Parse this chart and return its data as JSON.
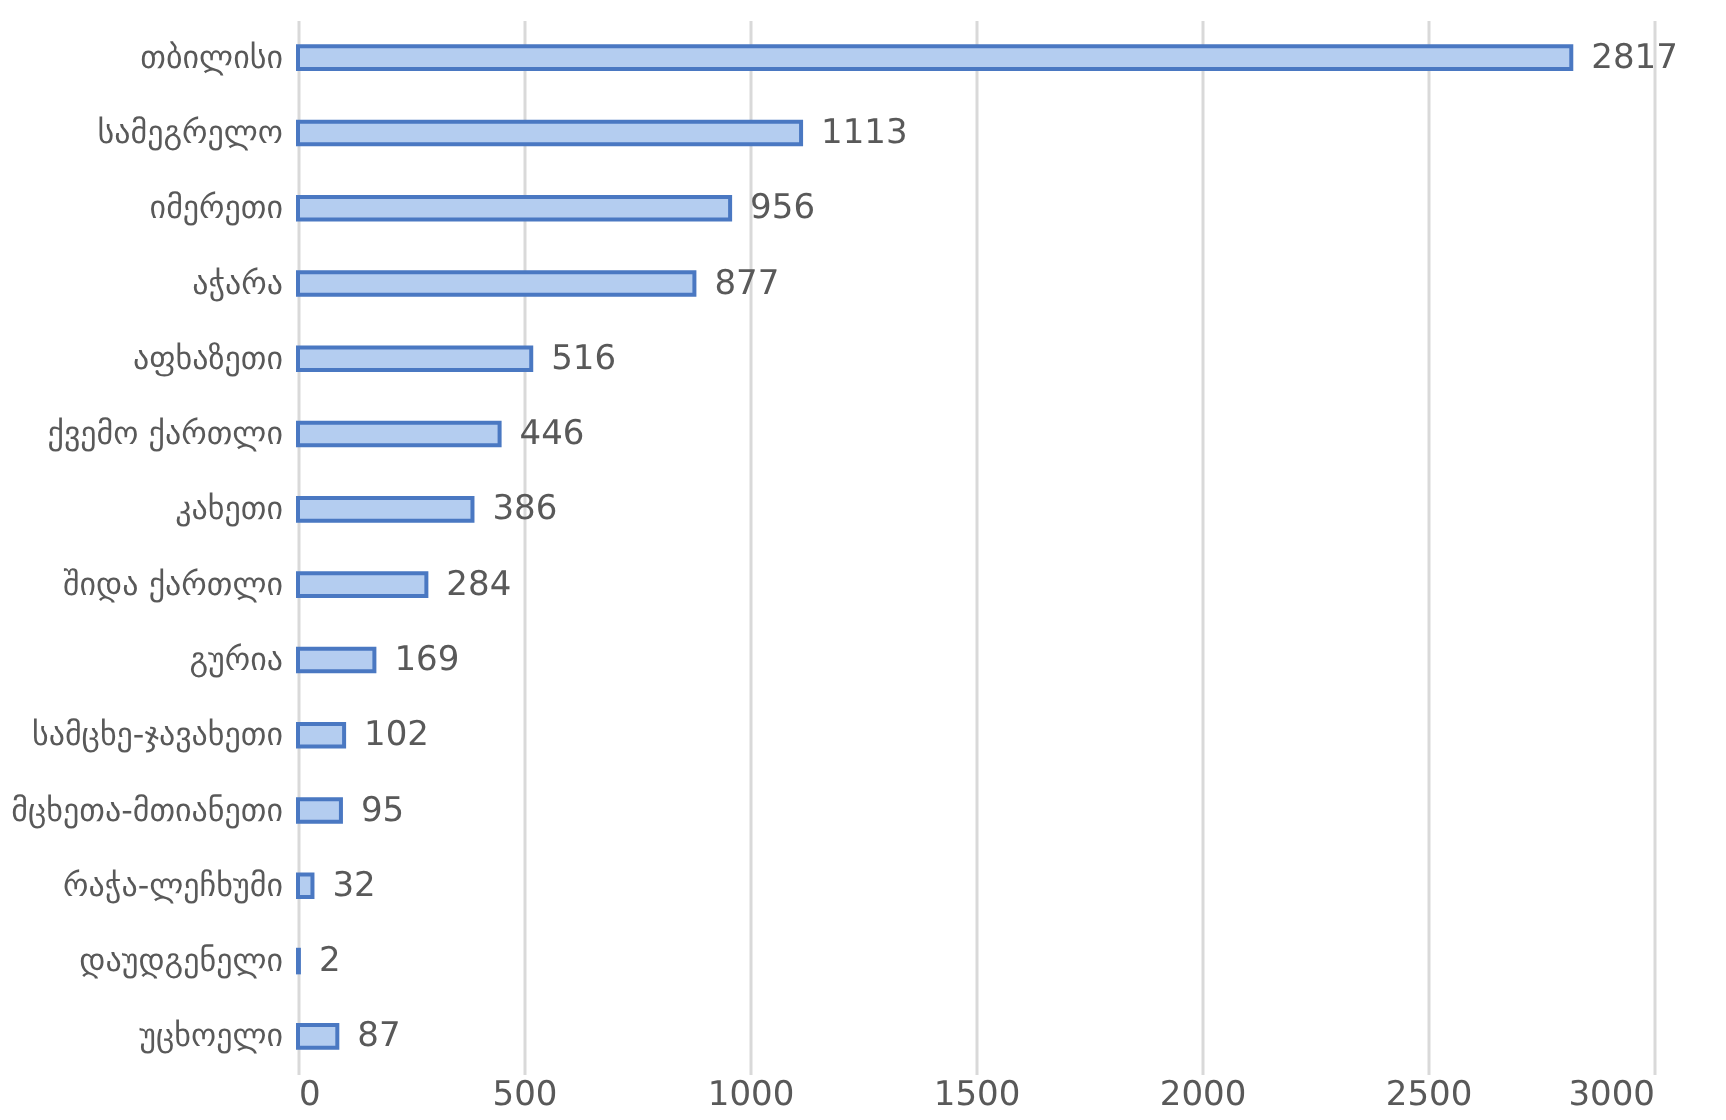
{
  "chart_data": {
    "type": "bar",
    "orientation": "horizontal",
    "categories": [
      "თბილისი",
      "სამეგრელო",
      "იმერეთი",
      "აჭარა",
      "აფხაზეთი",
      "ქვემო ქართლი",
      "კახეთი",
      "შიდა ქართლი",
      "გურია",
      "სამცხე-ჯავახეთი",
      "მცხეთა-მთიანეთი",
      "რაჭა-ლეჩხუმი",
      "დაუდგენელი",
      "უცხოელი"
    ],
    "values": [
      2817,
      1113,
      956,
      877,
      516,
      446,
      386,
      284,
      169,
      102,
      95,
      32,
      2,
      87
    ],
    "color": "#b4cdf0",
    "xlim": [
      0,
      3000
    ],
    "xticks": [
      0,
      500,
      1000,
      1500,
      2000,
      2500,
      3000
    ],
    "grid": "x",
    "data_labels": true
  }
}
